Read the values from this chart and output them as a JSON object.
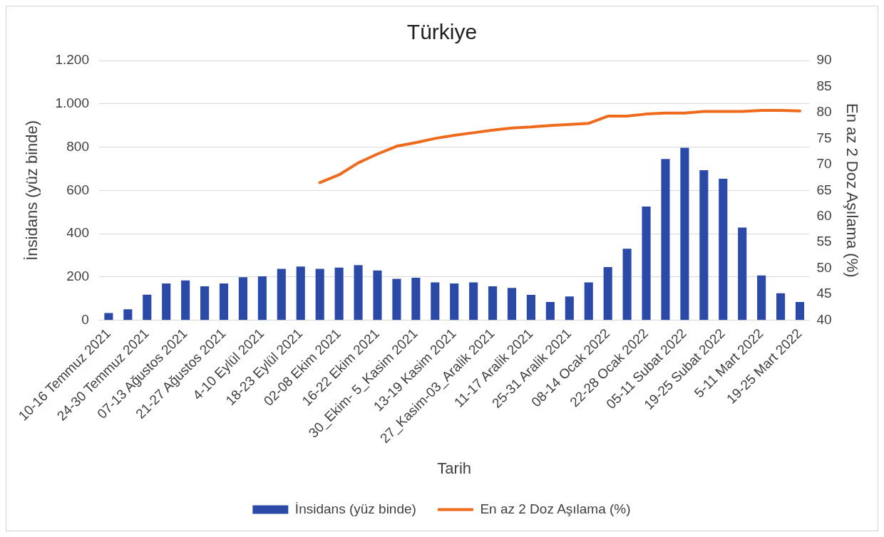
{
  "chart_data": {
    "type": "bar",
    "title": "Türkiye",
    "xlabel": "Tarih",
    "ylabel": "İnsidans (yüz binde)",
    "y2label": "En az 2 Doz Aşılama (%)",
    "categories": [
      "10-16 Temmuz 2021",
      null,
      "24-30 Temmuz 2021",
      null,
      "07-13 Ağustos 2021",
      null,
      "21-27 Ağustos 2021",
      null,
      "4-10 Eylül 2021",
      null,
      "18-23 Eylül 2021",
      null,
      "02-08 Ekim 2021",
      null,
      "16-22 Ekim 2021",
      null,
      "30_Ekim- 5_Kasim 2021",
      null,
      "13-19 Kasim 2021",
      null,
      "27_Kasim-03_Aralik 2021",
      null,
      "11-17 Aralik 2021",
      null,
      "25-31 Aralik 2021",
      null,
      "08-14 Ocak 2022",
      null,
      "22-28 Ocak 2022",
      null,
      "05-11 Subat 2022",
      null,
      "19-25 Subat 2022",
      null,
      "5-11 Mart 2022",
      null,
      "19-25 Mart 2022"
    ],
    "series": [
      {
        "name": "İnsidans (yüz binde)",
        "color": "#2b4aa8",
        "values": [
          33,
          51,
          118,
          170,
          184,
          157,
          170,
          199,
          203,
          237,
          248,
          237,
          243,
          255,
          230,
          191,
          196,
          175,
          170,
          175,
          157,
          149,
          117,
          84,
          110,
          175,
          246,
          330,
          525,
          745,
          797,
          693,
          654,
          428,
          207,
          125,
          84
        ]
      },
      {
        "name": "En az 2 Doz Aşılama (%)",
        "type": "line",
        "axis": "y2",
        "color": "#ee6a1c",
        "values": [
          null,
          null,
          null,
          null,
          null,
          null,
          null,
          null,
          null,
          null,
          null,
          66.5,
          68,
          70.3,
          72,
          73.5,
          74.2,
          75,
          75.6,
          76.1,
          76.6,
          77,
          77.2,
          77.5,
          77.7,
          77.9,
          79.3,
          79.3,
          79.7,
          79.9,
          79.9,
          80.2,
          80.2,
          80.2,
          80.4,
          80.4,
          80.3
        ]
      }
    ],
    "ylim": [
      0,
      1200
    ],
    "yticks": [
      0,
      {
        "value": 200,
        "label": "200"
      },
      {
        "value": 400,
        "label": "400"
      },
      {
        "value": 600,
        "label": "600"
      },
      {
        "value": 800,
        "label": "800"
      },
      {
        "value": 1000,
        "label": "1.000"
      },
      {
        "value": 1200,
        "label": "1.200"
      }
    ],
    "y2lim": [
      40,
      90
    ],
    "y2ticks": [
      40,
      45,
      50,
      55,
      60,
      65,
      70,
      75,
      80,
      85,
      90
    ],
    "grid": "y",
    "legend": "bottom",
    "marker": "none",
    "line_style": "solid"
  }
}
